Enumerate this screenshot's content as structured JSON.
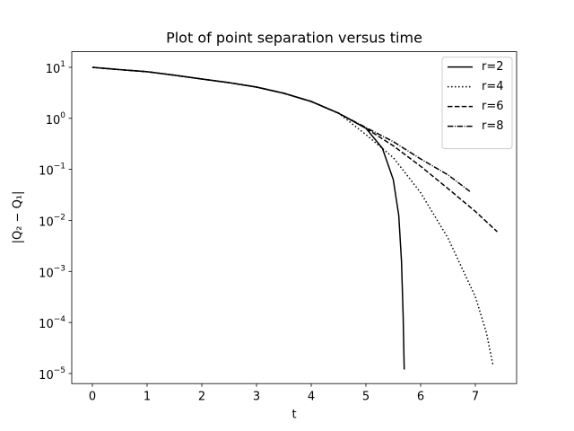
{
  "chart_data": {
    "type": "line",
    "title": "Plot of point separation versus time",
    "xlabel": "t",
    "ylabel": "|Q₂ − Q₁|",
    "yscale": "log",
    "legend": "upper right",
    "xlim": [
      -0.377,
      7.754
    ],
    "xticks": [
      0,
      1,
      2,
      3,
      4,
      5,
      6,
      7
    ],
    "ylim": [
      6.35e-06,
      20.2
    ],
    "yticks": [
      {
        "value": 1e-05,
        "label": "10",
        "exponent": "−5"
      },
      {
        "value": 0.0001,
        "label": "10",
        "exponent": "−4"
      },
      {
        "value": 0.001,
        "label": "10",
        "exponent": "−3"
      },
      {
        "value": 0.01,
        "label": "10",
        "exponent": "−2"
      },
      {
        "value": 0.1,
        "label": "10",
        "exponent": "−1"
      },
      {
        "value": 1,
        "label": "10",
        "exponent": "0"
      },
      {
        "value": 10,
        "label": "10",
        "exponent": "1"
      }
    ],
    "series": [
      {
        "name": "r=2",
        "color": "#000000",
        "linestyle": "solid",
        "x": [
          0,
          0.5,
          1,
          1.5,
          2,
          2.5,
          3,
          3.5,
          4,
          4.5,
          5,
          5.3,
          5.5,
          5.6,
          5.65,
          5.68,
          5.7
        ],
        "values": [
          10,
          9.0,
          8.2,
          7.0,
          5.9,
          5.0,
          4.1,
          3.1,
          2.14,
          1.26,
          0.64,
          0.26,
          0.063,
          0.0126,
          0.0016,
          0.00014,
          1.2e-05
        ]
      },
      {
        "name": "r=4",
        "color": "#000000",
        "linestyle": "dotted",
        "x": [
          0,
          0.5,
          1,
          1.5,
          2,
          2.5,
          3,
          3.5,
          4,
          4.5,
          5,
          5.5,
          6,
          6.5,
          7,
          7.2,
          7.32
        ],
        "values": [
          10,
          9.0,
          8.2,
          7.0,
          5.9,
          5.0,
          4.1,
          3.1,
          2.14,
          1.26,
          0.48,
          0.17,
          0.035,
          0.0045,
          0.00032,
          6.4e-05,
          1.5e-05
        ]
      },
      {
        "name": "r=6",
        "color": "#000000",
        "linestyle": "dashed",
        "x": [
          0,
          0.5,
          1,
          1.5,
          2,
          2.5,
          3,
          3.5,
          4,
          4.5,
          5,
          5.5,
          6,
          6.5,
          7,
          7.4
        ],
        "values": [
          10,
          9.0,
          8.2,
          7.0,
          5.9,
          5.0,
          4.1,
          3.1,
          2.14,
          1.26,
          0.64,
          0.29,
          0.115,
          0.042,
          0.015,
          0.006
        ]
      },
      {
        "name": "r=8",
        "color": "#000000",
        "linestyle": "dashdot",
        "x": [
          0,
          0.5,
          1,
          1.5,
          2,
          2.5,
          3,
          3.5,
          4,
          4.5,
          5,
          5.5,
          6,
          6.5,
          6.9
        ],
        "values": [
          10,
          9.0,
          8.2,
          7.0,
          5.9,
          5.0,
          4.1,
          3.1,
          2.14,
          1.26,
          0.66,
          0.35,
          0.16,
          0.078,
          0.037
        ]
      }
    ]
  }
}
